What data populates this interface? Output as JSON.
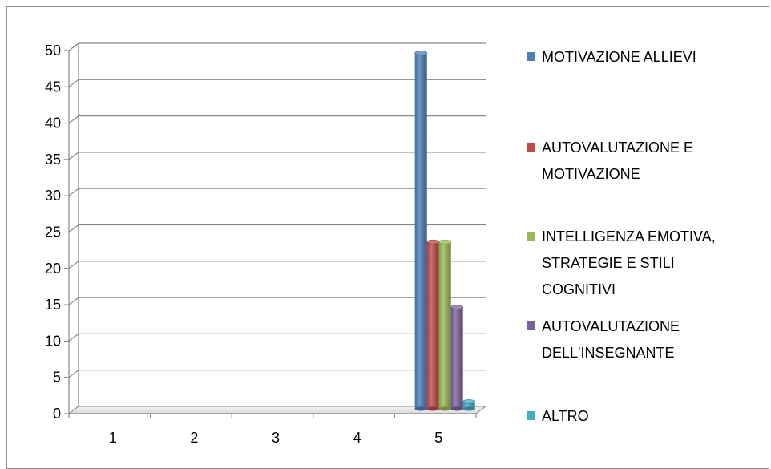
{
  "chart_data": {
    "type": "bar",
    "categories": [
      "1",
      "2",
      "3",
      "4",
      "5"
    ],
    "series": [
      {
        "name": "MOTIVAZIONE ALLIEVI",
        "values": [
          0,
          0,
          0,
          0,
          49
        ],
        "color": "#4a7ebb"
      },
      {
        "name": "AUTOVALUTAZIONE E MOTIVAZIONE",
        "values": [
          0,
          0,
          0,
          0,
          23
        ],
        "color": "#be4b48"
      },
      {
        "name": "INTELLIGENZA EMOTIVA, STRATEGIE E STILI COGNITIVI",
        "values": [
          0,
          0,
          0,
          0,
          23
        ],
        "color": "#98b954"
      },
      {
        "name": "AUTOVALUTAZIONE DELL'INSEGNANTE",
        "values": [
          0,
          0,
          0,
          0,
          14
        ],
        "color": "#7d60a0"
      },
      {
        "name": "ALTRO",
        "values": [
          0,
          0,
          0,
          0,
          1
        ],
        "color": "#46aac5"
      }
    ],
    "legend": {
      "position": "right",
      "lines": [
        [
          "MOTIVAZIONE ALLIEVI"
        ],
        [
          "AUTOVALUTAZIONE E",
          "MOTIVAZIONE"
        ],
        [
          "INTELLIGENZA EMOTIVA,",
          "STRATEGIE E STILI",
          "COGNITIVI"
        ],
        [
          "AUTOVALUTAZIONE",
          "DELL'INSEGNANTE"
        ],
        [
          "ALTRO"
        ]
      ]
    },
    "yticks": [
      "0",
      "5",
      "10",
      "15",
      "20",
      "25",
      "30",
      "35",
      "40",
      "45",
      "50"
    ],
    "ylim": [
      0,
      50
    ],
    "grid": true,
    "style": "3d-cylinder"
  }
}
